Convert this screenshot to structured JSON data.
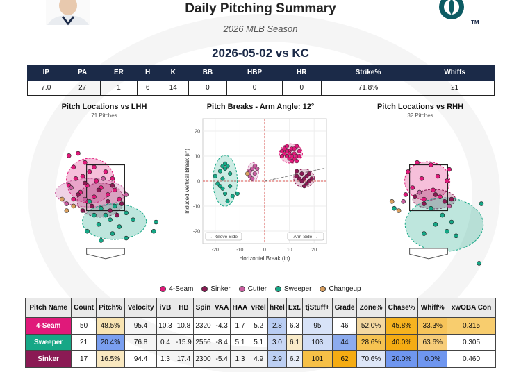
{
  "header": {
    "title": "Daily Pitching Summary",
    "subtitle": "2026 MLB Season",
    "game": "2026-05-02 vs KC",
    "logo_mark": "TM"
  },
  "summary": {
    "columns": [
      "IP",
      "PA",
      "ER",
      "H",
      "K",
      "BB",
      "HBP",
      "HR",
      "Strike%",
      "Whiffs"
    ],
    "values": [
      "7.0",
      "27",
      "1",
      "6",
      "14",
      "0",
      "0",
      "0",
      "71.8%",
      "21"
    ]
  },
  "panels": {
    "lhh_title": "Pitch Locations vs LHH",
    "lhh_sub": "71 Pitches",
    "breaks_title": "Pitch Breaks - Arm Angle: 12°",
    "rhh_title": "Pitch Locations vs RHH",
    "rhh_sub": "32 Pitches"
  },
  "colors": {
    "4-Seam": "#e0197a",
    "Sinker": "#8b1a54",
    "Cutter": "#c95ea0",
    "Sweeper": "#16a786",
    "Changeup": "#d9a060"
  },
  "chart_data": [
    {
      "type": "scatter",
      "title": "Pitch Locations vs LHH",
      "subtitle": "71 Pitches",
      "series": [
        {
          "name": "4-Seam",
          "points": [
            [
              -1.6,
              3.9
            ],
            [
              -1.2,
              4.0
            ],
            [
              -0.9,
              3.6
            ],
            [
              -0.5,
              3.4
            ],
            [
              -1.4,
              3.4
            ],
            [
              -0.7,
              3.2
            ],
            [
              -1.0,
              3.0
            ],
            [
              -1.3,
              2.9
            ],
            [
              -0.4,
              2.8
            ],
            [
              0.0,
              3.2
            ],
            [
              0.3,
              2.9
            ],
            [
              -1.6,
              2.6
            ],
            [
              -0.8,
              2.6
            ],
            [
              -0.2,
              2.5
            ],
            [
              0.4,
              2.4
            ],
            [
              -1.1,
              2.3
            ],
            [
              0.1,
              2.2
            ],
            [
              -0.5,
              2.1
            ],
            [
              -1.4,
              2.0
            ],
            [
              0.6,
              2.0
            ],
            [
              -0.8,
              1.9
            ]
          ]
        },
        {
          "name": "Sinker",
          "points": [
            [
              -0.9,
              2.7
            ],
            [
              -0.3,
              2.4
            ],
            [
              0.3,
              2.6
            ],
            [
              -1.2,
              2.2
            ],
            [
              0.1,
              1.9
            ],
            [
              0.7,
              1.8
            ],
            [
              -0.6,
              1.7
            ],
            [
              0.2,
              1.5
            ],
            [
              -1.0,
              1.5
            ],
            [
              0.5,
              1.3
            ]
          ]
        },
        {
          "name": "Cutter",
          "points": [
            [
              -1.5,
              2.5
            ],
            [
              -0.9,
              2.0
            ],
            [
              -0.1,
              2.9
            ],
            [
              0.9,
              2.2
            ],
            [
              -1.7,
              1.8
            ]
          ]
        },
        {
          "name": "Sweeper",
          "points": [
            [
              -0.2,
              1.6
            ],
            [
              0.4,
              1.7
            ],
            [
              -0.5,
              1.3
            ],
            [
              0.9,
              1.4
            ],
            [
              0.2,
              1.1
            ],
            [
              -0.3,
              0.9
            ],
            [
              0.6,
              0.8
            ],
            [
              1.2,
              1.1
            ],
            [
              -0.8,
              0.6
            ],
            [
              0.3,
              0.5
            ],
            [
              0.9,
              0.3
            ],
            [
              -0.2,
              0.2
            ],
            [
              2.2,
              1.0
            ],
            [
              2.1,
              0.6
            ],
            [
              -0.7,
              1.9
            ],
            [
              0.0,
              1.3
            ]
          ]
        },
        {
          "name": "Changeup",
          "points": [
            [
              -1.9,
              2.0
            ],
            [
              -1.7,
              1.5
            ],
            [
              -1.4,
              1.7
            ]
          ]
        }
      ]
    },
    {
      "type": "scatter",
      "title": "Pitch Breaks - Arm Angle: 12°",
      "xlabel": "Horizontal Break (in)",
      "ylabel": "Induced Vertical Break (in)",
      "xlim": [
        -25,
        25
      ],
      "ylim": [
        -25,
        25
      ],
      "xticks": [
        -20,
        -10,
        0,
        10,
        20
      ],
      "yticks": [
        -20,
        -10,
        0,
        10,
        20
      ],
      "annotations": [
        "← Glove Side",
        "Arm Side →"
      ],
      "series": [
        {
          "name": "4-Seam",
          "points": [
            [
              7,
              12
            ],
            [
              8,
              13
            ],
            [
              9,
              14
            ],
            [
              10,
              12
            ],
            [
              11,
              13
            ],
            [
              12,
              11
            ],
            [
              13,
              14
            ],
            [
              9,
              10
            ],
            [
              10,
              9
            ],
            [
              12,
              9
            ],
            [
              14,
              12
            ],
            [
              11,
              8
            ],
            [
              13,
              10
            ],
            [
              8,
              11
            ],
            [
              10,
              11
            ],
            [
              12,
              13
            ],
            [
              14,
              10
            ],
            [
              9,
              12
            ],
            [
              11,
              10
            ],
            [
              7,
              10
            ],
            [
              13,
              8
            ]
          ]
        },
        {
          "name": "Sinker",
          "points": [
            [
              13,
              4
            ],
            [
              15,
              3
            ],
            [
              16,
              1
            ],
            [
              17,
              2
            ],
            [
              18,
              3
            ],
            [
              15,
              0
            ],
            [
              17,
              -1
            ],
            [
              19,
              1
            ],
            [
              14,
              1
            ],
            [
              16,
              -2
            ],
            [
              18,
              0
            ],
            [
              13,
              2
            ]
          ]
        },
        {
          "name": "Cutter",
          "points": [
            [
              -6,
              4
            ],
            [
              -5,
              5
            ],
            [
              -4,
              3
            ],
            [
              -6,
              2
            ],
            [
              -3,
              5
            ],
            [
              -5,
              1
            ],
            [
              -4,
              6
            ]
          ]
        },
        {
          "name": "Sweeper",
          "points": [
            [
              -20,
              2
            ],
            [
              -18,
              4
            ],
            [
              -17,
              1
            ],
            [
              -16,
              5
            ],
            [
              -15,
              6
            ],
            [
              -19,
              -1
            ],
            [
              -17,
              -3
            ],
            [
              -16,
              -5
            ],
            [
              -14,
              -2
            ],
            [
              -15,
              -8
            ],
            [
              -13,
              -6
            ],
            [
              -11,
              -5
            ],
            [
              -18,
              -2
            ],
            [
              -16,
              7
            ],
            [
              -14,
              3
            ],
            [
              -17,
              6
            ]
          ]
        },
        {
          "name": "Changeup",
          "points": [
            [
              -7,
              3
            ]
          ]
        }
      ]
    },
    {
      "type": "scatter",
      "title": "Pitch Locations vs RHH",
      "subtitle": "32 Pitches",
      "series": [
        {
          "name": "4-Seam",
          "points": [
            [
              -0.5,
              3.6
            ],
            [
              0.1,
              3.5
            ],
            [
              -0.9,
              3.2
            ],
            [
              0.4,
              3.0
            ],
            [
              -0.3,
              2.9
            ],
            [
              0.8,
              2.8
            ],
            [
              -0.7,
              2.5
            ],
            [
              0.2,
              2.4
            ],
            [
              -1.0,
              2.2
            ],
            [
              0.5,
              2.1
            ],
            [
              -0.2,
              2.0
            ],
            [
              0.9,
              3.3
            ]
          ]
        },
        {
          "name": "Sinker",
          "points": [
            [
              -0.6,
              2.1
            ],
            [
              0.3,
              2.2
            ],
            [
              0.7,
              1.9
            ],
            [
              -0.2,
              1.8
            ],
            [
              1.0,
              2.0
            ]
          ]
        },
        {
          "name": "Cutter",
          "points": [
            [
              -1.1,
              1.9
            ],
            [
              0.9,
              1.7
            ],
            [
              -0.4,
              2.3
            ]
          ]
        },
        {
          "name": "Sweeper",
          "points": [
            [
              0.1,
              1.6
            ],
            [
              0.6,
              1.3
            ],
            [
              1.0,
              1.0
            ],
            [
              0.3,
              0.9
            ],
            [
              0.8,
              0.6
            ],
            [
              1.2,
              0.4
            ],
            [
              -0.2,
              0.5
            ],
            [
              2.3,
              1.8
            ],
            [
              2.2,
              -0.8
            ],
            [
              -1.5,
              1.6
            ]
          ]
        },
        {
          "name": "Changeup",
          "points": [
            [
              -1.6,
              1.9
            ],
            [
              -1.3,
              1.5
            ]
          ]
        }
      ]
    }
  ],
  "legend": {
    "items": [
      "4-Seam",
      "Sinker",
      "Cutter",
      "Sweeper",
      "Changeup"
    ]
  },
  "pitch_table": {
    "columns": [
      "Pitch Name",
      "Count",
      "Pitch%",
      "Velocity",
      "iVB",
      "HB",
      "Spin",
      "VAA",
      "HAA",
      "vRel",
      "hRel",
      "Ext.",
      "tjStuff+",
      "Grade",
      "Zone%",
      "Chase%",
      "Whiff%",
      "xwOBA Con"
    ],
    "rows": [
      {
        "name": "4-Seam",
        "cells": [
          "50",
          "48.5%",
          "95.4",
          "10.3",
          "10.8",
          "2320",
          "-4.3",
          "1.7",
          "5.2",
          "2.8",
          "6.3",
          "95",
          "46",
          "52.0%",
          "45.8%",
          "33.3%",
          "0.315"
        ]
      },
      {
        "name": "Sweeper",
        "cells": [
          "21",
          "20.4%",
          "76.8",
          "0.4",
          "-15.9",
          "2556",
          "-8.4",
          "5.1",
          "5.1",
          "3.0",
          "6.1",
          "103",
          "44",
          "28.6%",
          "40.0%",
          "63.6%",
          "0.305"
        ]
      },
      {
        "name": "Sinker",
        "cells": [
          "17",
          "16.5%",
          "94.4",
          "1.3",
          "17.4",
          "2300",
          "-5.4",
          "1.3",
          "4.9",
          "2.9",
          "6.2",
          "101",
          "62",
          "70.6%",
          "20.0%",
          "0.0%",
          "0.460"
        ]
      }
    ],
    "cell_colors": [
      [
        "",
        "",
        "#f8e4b2",
        "",
        "",
        "",
        "",
        "",
        "",
        "",
        "#b9cdf3",
        "",
        "#d8e3f8",
        "",
        "#f4d8a0",
        "#f6b31f",
        "#f7c45a",
        "#f8cd6e"
      ],
      [
        "",
        "",
        "#7a9ff0",
        "",
        "",
        "",
        "",
        "",
        "",
        "",
        "#c7d6f4",
        "#f9ebc9",
        "#cfdcf6",
        "#8cabee",
        "#f6c352",
        "#f5ac13",
        "#f7cd7a"
      ],
      [
        "",
        "",
        "#f9e8c0",
        "",
        "",
        "",
        "",
        "",
        "",
        "",
        "#bccff3",
        "#e8eef9",
        "#f6c047",
        "#f5ac13",
        "#dde6f7",
        "#6f96ef",
        "#6f96ef"
      ]
    ]
  }
}
